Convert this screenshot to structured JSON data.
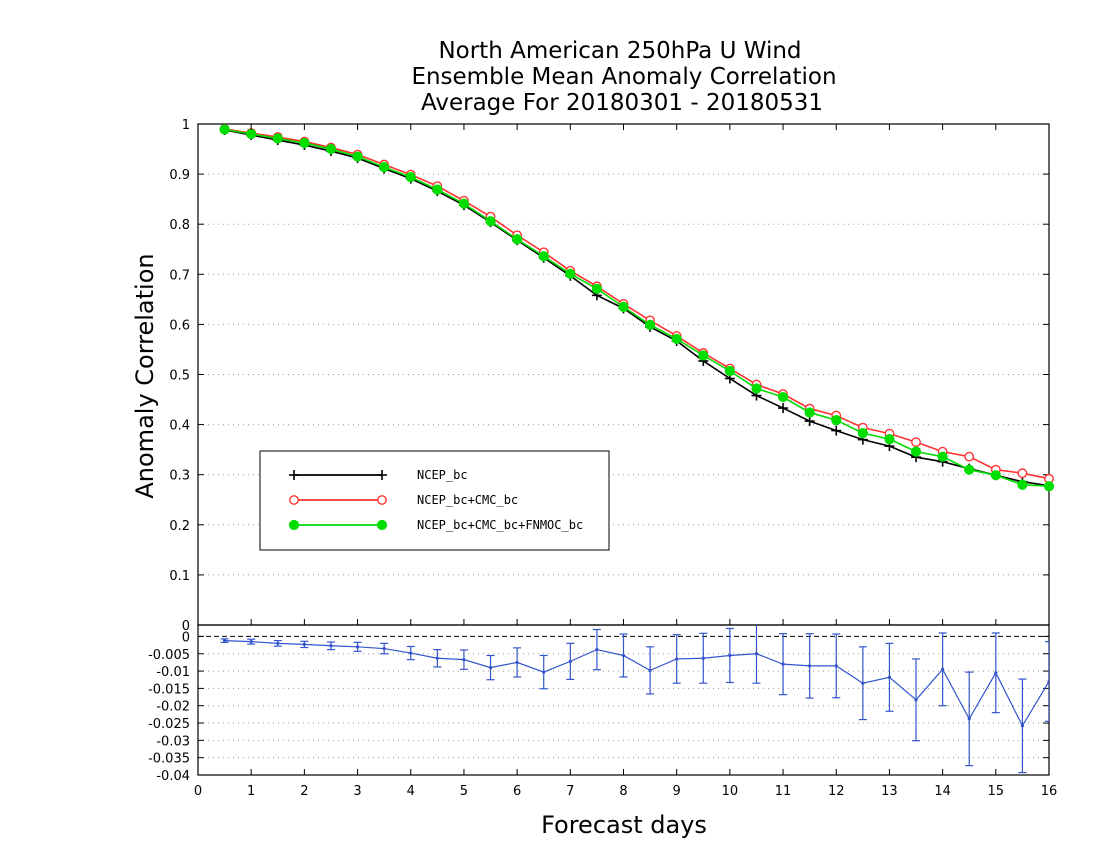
{
  "chart_data": {
    "type": "line",
    "title_lines": [
      "North American 250hPa U Wind",
      "Ensemble Mean Anomaly Correlation",
      "Average For 20180301 - 20180531"
    ],
    "xlabel": "Forecast days",
    "ylabel": "Anomaly Correlation",
    "xlim": [
      0,
      16
    ],
    "x_ticks": [
      "0",
      "1",
      "2",
      "3",
      "4",
      "5",
      "6",
      "7",
      "8",
      "9",
      "10",
      "11",
      "12",
      "13",
      "14",
      "15",
      "16"
    ],
    "top_panel": {
      "ylim": [
        0,
        1
      ],
      "y_ticks": [
        "0",
        "0.1",
        "0.2",
        "0.3",
        "0.4",
        "0.5",
        "0.6",
        "0.7",
        "0.8",
        "0.9",
        "1"
      ],
      "x": [
        0.5,
        1,
        1.5,
        2,
        2.5,
        3,
        3.5,
        4,
        4.5,
        5,
        5.5,
        6,
        6.5,
        7,
        7.5,
        8,
        8.5,
        9,
        9.5,
        10,
        10.5,
        11,
        11.5,
        12,
        12.5,
        13,
        13.5,
        14,
        14.5,
        15,
        15.5,
        16
      ],
      "series": [
        {
          "name": "NCEP_bc",
          "color": "#000000",
          "marker": "plus",
          "values": [
            0.988,
            0.978,
            0.968,
            0.958,
            0.946,
            0.932,
            0.911,
            0.891,
            0.866,
            0.838,
            0.804,
            0.768,
            0.733,
            0.697,
            0.658,
            0.632,
            0.595,
            0.567,
            0.527,
            0.492,
            0.458,
            0.433,
            0.407,
            0.388,
            0.37,
            0.357,
            0.335,
            0.326,
            0.312,
            0.299,
            0.286,
            0.278
          ]
        },
        {
          "name": "NCEP_bc+CMC_bc",
          "color": "#ff3333",
          "marker": "circle-open",
          "values": [
            0.99,
            0.982,
            0.974,
            0.965,
            0.953,
            0.939,
            0.919,
            0.899,
            0.876,
            0.847,
            0.815,
            0.778,
            0.744,
            0.707,
            0.676,
            0.641,
            0.608,
            0.577,
            0.543,
            0.512,
            0.48,
            0.461,
            0.432,
            0.418,
            0.394,
            0.382,
            0.365,
            0.346,
            0.336,
            0.31,
            0.303,
            0.292
          ]
        },
        {
          "name": "NCEP_bc+CMC_bc+FNMOC_bc",
          "color": "#00dd00",
          "marker": "circle-filled",
          "values": [
            0.989,
            0.98,
            0.971,
            0.962,
            0.95,
            0.935,
            0.914,
            0.894,
            0.869,
            0.841,
            0.806,
            0.77,
            0.736,
            0.701,
            0.671,
            0.635,
            0.599,
            0.571,
            0.538,
            0.507,
            0.472,
            0.455,
            0.424,
            0.409,
            0.383,
            0.371,
            0.346,
            0.336,
            0.31,
            0.299,
            0.28,
            0.277
          ]
        }
      ],
      "legend_position": "lower-left"
    },
    "bottom_panel": {
      "ylim": [
        -0.04,
        0.0033
      ],
      "y_ticks": [
        "0",
        "-0.005",
        "-0.01",
        "-0.015",
        "-0.02",
        "-0.025",
        "-0.03",
        "-0.035",
        "-0.04"
      ],
      "color": "#3355cc",
      "x": [
        0.5,
        1,
        1.5,
        2,
        2.5,
        3,
        3.5,
        4,
        4.5,
        5,
        5.5,
        6,
        6.5,
        7,
        7.5,
        8,
        8.5,
        9,
        9.5,
        10,
        10.5,
        11,
        11.5,
        12,
        12.5,
        13,
        13.5,
        14,
        14.5,
        15,
        15.5,
        16
      ],
      "mean": [
        -0.0012,
        -0.0015,
        -0.002,
        -0.0023,
        -0.0027,
        -0.003,
        -0.0035,
        -0.0048,
        -0.0063,
        -0.0067,
        -0.009,
        -0.0075,
        -0.0103,
        -0.0072,
        -0.0038,
        -0.0055,
        -0.0098,
        -0.0065,
        -0.0063,
        -0.0055,
        -0.005,
        -0.008,
        -0.0085,
        -0.0085,
        -0.0135,
        -0.0118,
        -0.0183,
        -0.0095,
        -0.0238,
        -0.0105,
        -0.0258,
        -0.013
      ],
      "error": [
        0.0005,
        0.0007,
        0.0008,
        0.0009,
        0.0011,
        0.0013,
        0.0015,
        0.0019,
        0.0025,
        0.0028,
        0.0035,
        0.0042,
        0.0048,
        0.0052,
        0.0058,
        0.0062,
        0.0068,
        0.007,
        0.0072,
        0.0078,
        0.0085,
        0.0088,
        0.0093,
        0.0092,
        0.0105,
        0.0098,
        0.0118,
        0.0105,
        0.0135,
        0.0115,
        0.0135,
        0.0115
      ]
    }
  }
}
